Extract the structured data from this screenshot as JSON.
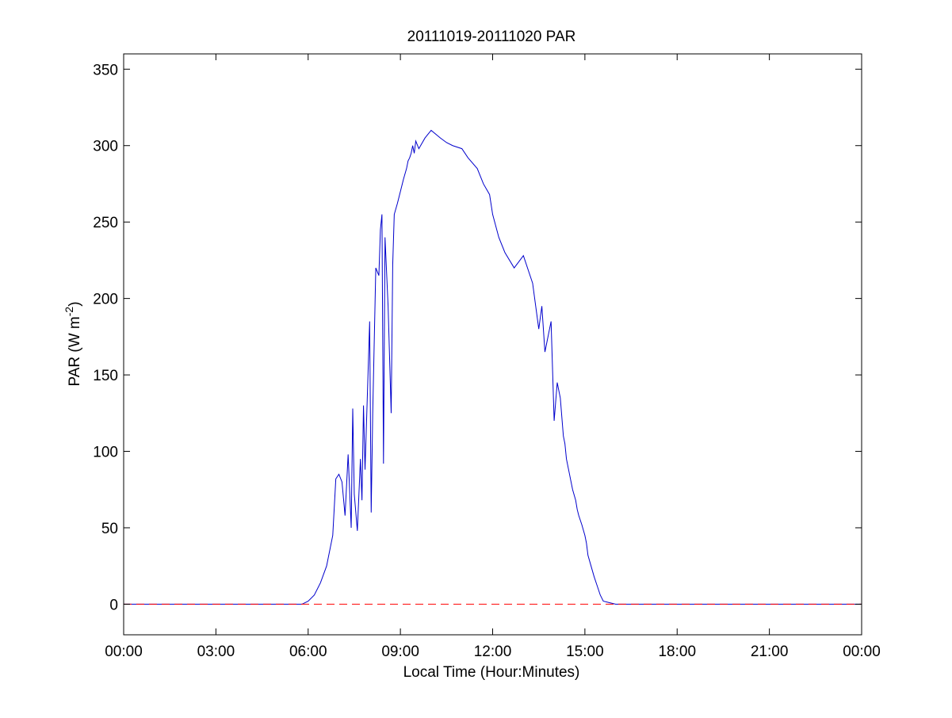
{
  "chart_data": {
    "type": "line",
    "title": "20111019-20111020 PAR",
    "xlabel": "Local Time (Hour:Minutes)",
    "ylabel": {
      "prefix": "PAR (W m",
      "superscript": "-2",
      "suffix": ")"
    },
    "x_unit": "hours of day",
    "xlim": [
      0,
      24
    ],
    "ylim": [
      -20,
      360
    ],
    "x_ticks": [
      0,
      3,
      6,
      9,
      12,
      15,
      18,
      21,
      24
    ],
    "x_tick_labels": [
      "00:00",
      "03:00",
      "06:00",
      "09:00",
      "12:00",
      "15:00",
      "18:00",
      "21:00",
      "00:00"
    ],
    "y_ticks": [
      0,
      50,
      100,
      150,
      200,
      250,
      300,
      350
    ],
    "y_tick_labels": [
      "0",
      "50",
      "100",
      "150",
      "200",
      "250",
      "300",
      "350"
    ],
    "grid": false,
    "legend": "none",
    "series": [
      {
        "color": "#0000cc",
        "line_style": "solid",
        "x": [
          0,
          5.8,
          6.0,
          6.2,
          6.4,
          6.6,
          6.8,
          6.9,
          7.0,
          7.1,
          7.2,
          7.3,
          7.4,
          7.45,
          7.5,
          7.6,
          7.7,
          7.75,
          7.8,
          7.85,
          7.9,
          8.0,
          8.05,
          8.1,
          8.2,
          8.3,
          8.35,
          8.4,
          8.45,
          8.5,
          8.6,
          8.7,
          8.75,
          8.8,
          8.9,
          9.0,
          9.1,
          9.2,
          9.25,
          9.3,
          9.35,
          9.4,
          9.45,
          9.5,
          9.6,
          9.8,
          10.0,
          10.3,
          10.5,
          10.7,
          11.0,
          11.2,
          11.5,
          11.7,
          11.9,
          12.0,
          12.2,
          12.4,
          12.7,
          13.0,
          13.3,
          13.5,
          13.6,
          13.7,
          13.8,
          13.9,
          14.0,
          14.1,
          14.2,
          14.3,
          14.35,
          14.4,
          14.5,
          14.6,
          14.7,
          14.75,
          14.8,
          14.9,
          15.0,
          15.05,
          15.1,
          15.2,
          15.3,
          15.4,
          15.5,
          15.6,
          15.8,
          16.0,
          16.2,
          16.4,
          16.6,
          16.8,
          17.0,
          17.2,
          17.4,
          17.6,
          17.8,
          18.0,
          24
        ],
        "y": [
          0,
          0,
          2,
          6,
          14,
          25,
          45,
          82,
          85,
          80,
          58,
          98,
          50,
          128,
          72,
          48,
          95,
          68,
          130,
          88,
          120,
          185,
          60,
          125,
          220,
          215,
          245,
          255,
          92,
          240,
          195,
          125,
          222,
          255,
          262,
          270,
          278,
          285,
          290,
          292,
          295,
          300,
          295,
          303,
          298,
          305,
          310,
          305,
          302,
          300,
          298,
          292,
          285,
          275,
          268,
          255,
          240,
          230,
          220,
          228,
          210,
          180,
          195,
          165,
          175,
          185,
          120,
          145,
          135,
          110,
          105,
          95,
          85,
          75,
          68,
          62,
          58,
          52,
          45,
          40,
          32,
          25,
          18,
          12,
          6,
          2,
          1,
          0,
          0,
          0,
          0,
          0,
          0,
          0,
          0,
          0,
          0,
          0,
          0
        ]
      },
      {
        "color": "#ff0000",
        "line_style": "dashed",
        "x": [
          0,
          24
        ],
        "y": [
          0,
          0
        ]
      }
    ]
  }
}
